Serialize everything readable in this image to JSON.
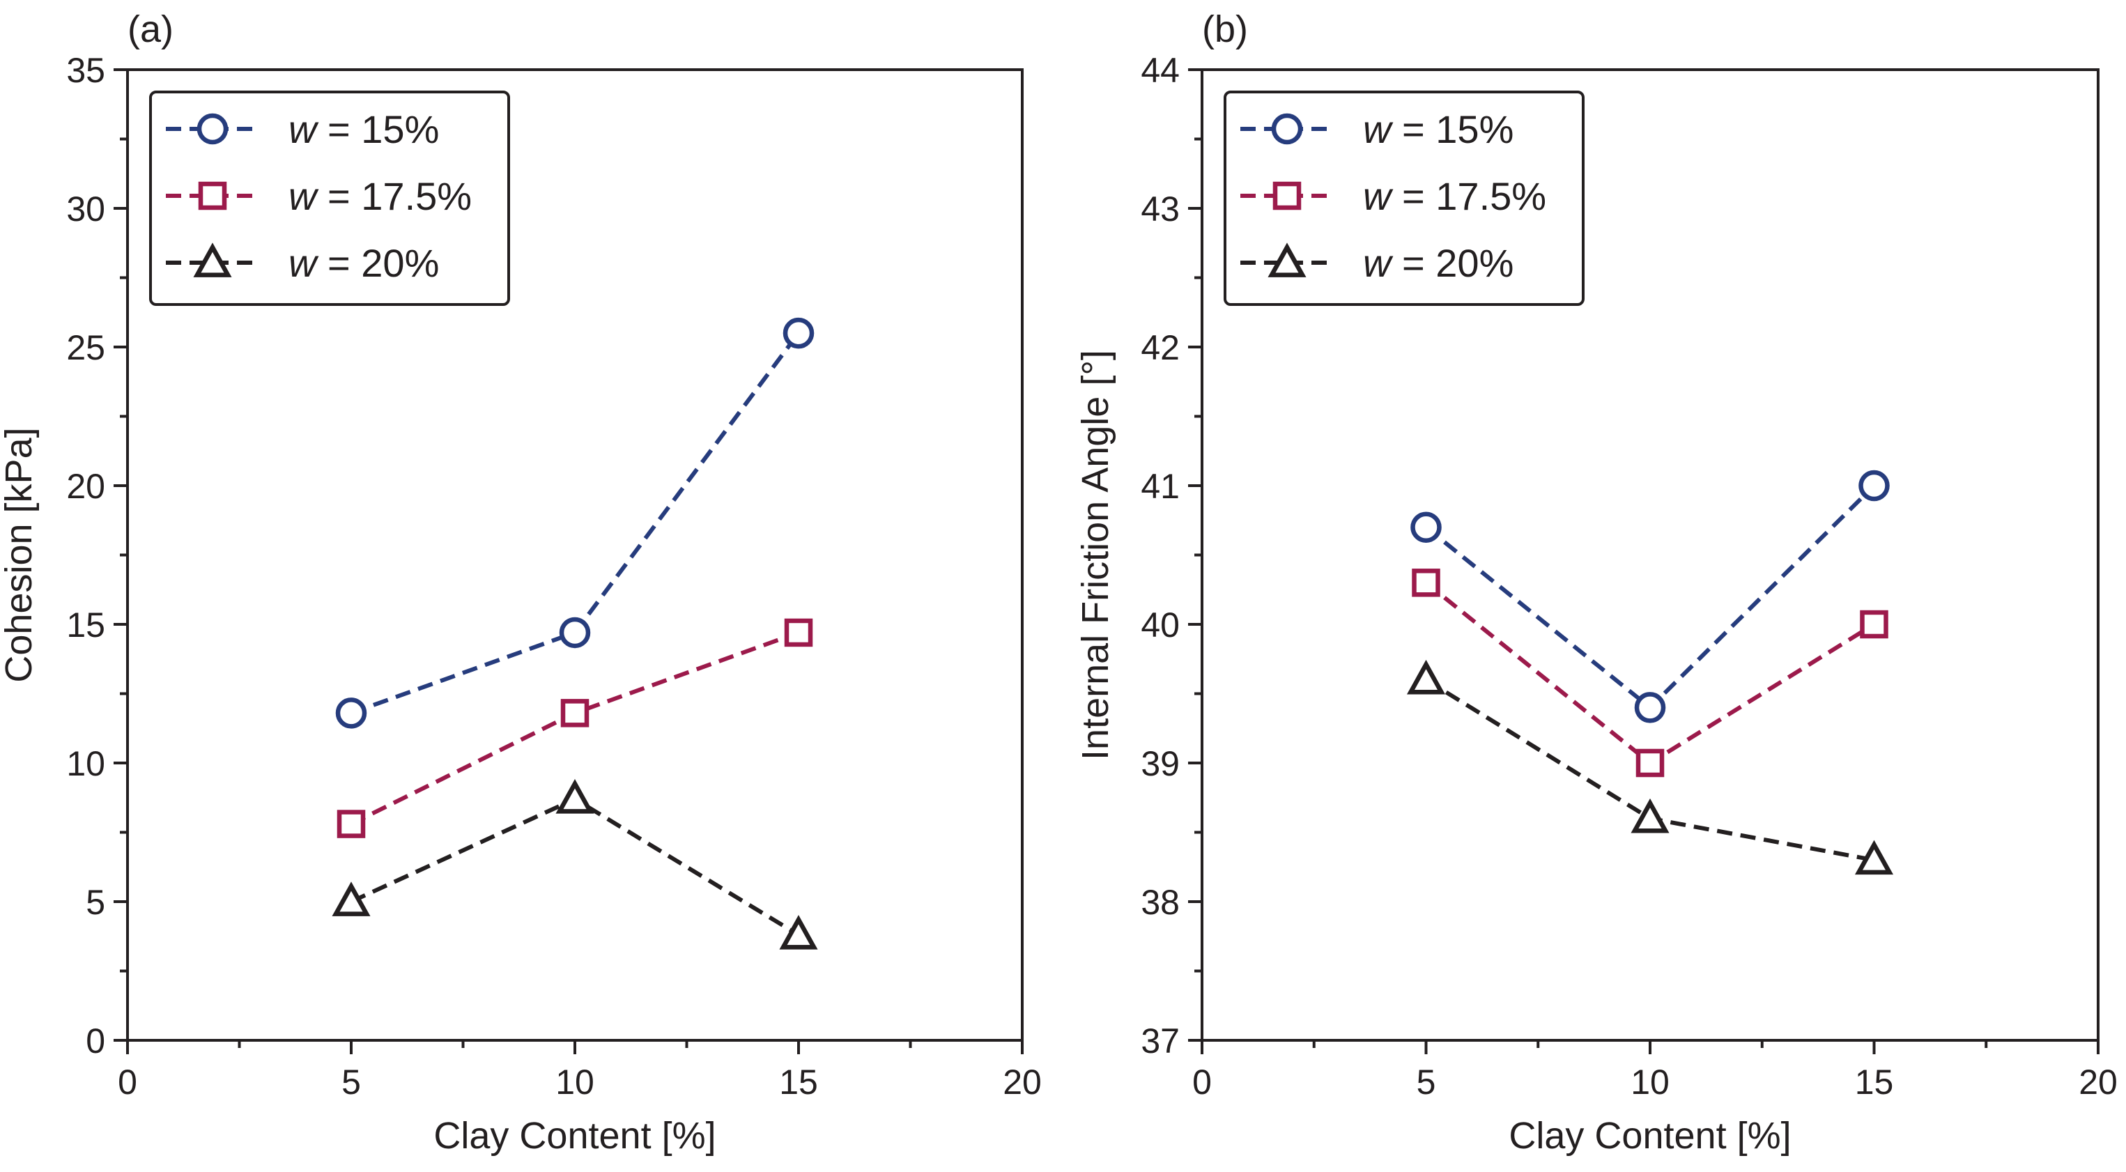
{
  "chart_data": [
    {
      "type": "line",
      "panel_label": "(a)",
      "xlabel": "Clay Content [%]",
      "ylabel": "Cohesion [kPa]",
      "xlim": [
        0,
        20
      ],
      "ylim": [
        0,
        35
      ],
      "x_ticks": [
        0,
        5,
        10,
        15,
        20
      ],
      "y_ticks": [
        0,
        5,
        10,
        15,
        20,
        25,
        30,
        35
      ],
      "x_tick_labels": [
        "0",
        "5",
        "10",
        "15",
        "20"
      ],
      "y_tick_labels": [
        "0",
        "5",
        "10",
        "15",
        "20",
        "25",
        "30",
        "35"
      ],
      "grid": false,
      "legend_position": "top-left",
      "x": [
        5,
        10,
        15
      ],
      "series": [
        {
          "name": "w = 15%",
          "var": "w",
          "rest": " = 15%",
          "marker": "circle",
          "color": "#263c7d",
          "values": [
            11.8,
            14.7,
            25.5
          ]
        },
        {
          "name": "w = 17.5%",
          "var": "w",
          "rest": " = 17.5%",
          "marker": "square",
          "color": "#9c1a4b",
          "values": [
            7.8,
            11.8,
            14.7
          ]
        },
        {
          "name": "w = 20%",
          "var": "w",
          "rest": " = 20%",
          "marker": "triangle",
          "color": "#231f20",
          "values": [
            5.0,
            8.7,
            3.8
          ]
        }
      ]
    },
    {
      "type": "line",
      "panel_label": "(b)",
      "xlabel": "Clay Content [%]",
      "ylabel": "Internal Friction Angle [°]",
      "xlim": [
        0,
        20
      ],
      "ylim": [
        37,
        44
      ],
      "x_ticks": [
        0,
        5,
        10,
        15,
        20
      ],
      "y_ticks": [
        37,
        38,
        39,
        40,
        41,
        42,
        43,
        44
      ],
      "x_tick_labels": [
        "0",
        "5",
        "10",
        "15",
        "20"
      ],
      "y_tick_labels": [
        "37",
        "38",
        "39",
        "40",
        "41",
        "42",
        "43",
        "44"
      ],
      "grid": false,
      "legend_position": "top-left",
      "x": [
        5,
        10,
        15
      ],
      "series": [
        {
          "name": "w = 15%",
          "var": "w",
          "rest": " = 15%",
          "marker": "circle",
          "color": "#263c7d",
          "values": [
            40.7,
            39.4,
            41.0
          ]
        },
        {
          "name": "w = 17.5%",
          "var": "w",
          "rest": " = 17.5%",
          "marker": "square",
          "color": "#9c1a4b",
          "values": [
            40.3,
            39.0,
            40.0
          ]
        },
        {
          "name": "w = 20%",
          "var": "w",
          "rest": " = 20%",
          "marker": "triangle",
          "color": "#231f20",
          "values": [
            39.6,
            38.6,
            38.3
          ]
        }
      ]
    }
  ]
}
